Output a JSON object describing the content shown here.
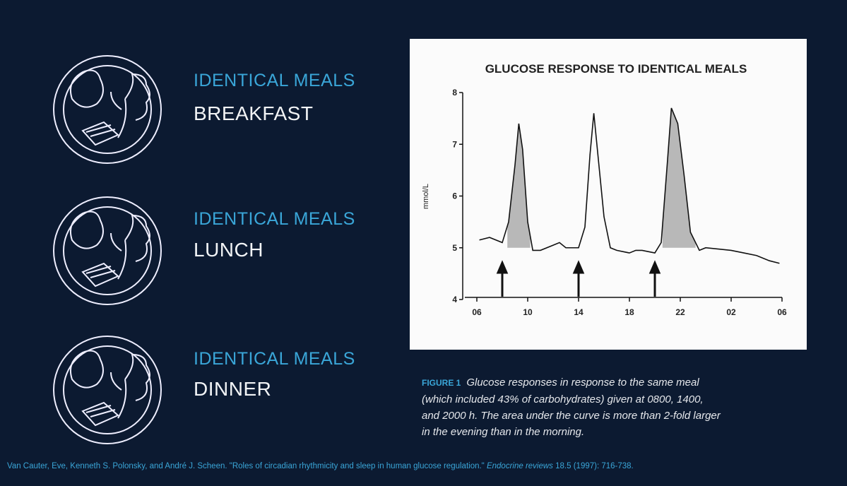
{
  "meals": [
    {
      "label": "IDENTICAL MEALS",
      "name": "BREAKFAST"
    },
    {
      "label": "IDENTICAL MEALS",
      "name": "LUNCH"
    },
    {
      "label": "IDENTICAL MEALS",
      "name": "DINNER"
    }
  ],
  "caption": {
    "figure": "FIGURE 1",
    "lines": [
      "Glucose responses in response to the same meal",
      "(which included 43% of carbohydrates) given at 0800, 1400,",
      "and 2000 h. The area under the curve is more than 2-fold larger",
      "in the evening than in the morning."
    ]
  },
  "citation": {
    "before": "Van Cauter, Eve, Kenneth S. Polonsky, and André J. Scheen. \"Roles of circadian rhythmicity and sleep in human glucose regulation.\"",
    "journal": "Endocrine reviews",
    "after": "18.5 (1997): 716-738."
  },
  "chart_data": {
    "type": "line",
    "title": "GLUCOSE RESPONSE TO IDENTICAL MEALS",
    "y_label": "mmol/L",
    "color": "#111111",
    "x": [
      6.2,
      7,
      8,
      8.5,
      9.0,
      9.3,
      9.6,
      10.0,
      10.4,
      11,
      12,
      12.5,
      13,
      14,
      14.5,
      14.9,
      15.2,
      15.6,
      16.0,
      16.5,
      17,
      18,
      18.5,
      19,
      20,
      20.5,
      21,
      21.3,
      21.8,
      22.3,
      22.8,
      23.5,
      24,
      26,
      27,
      28,
      29,
      29.8
    ],
    "values": [
      5.15,
      5.2,
      5.1,
      5.5,
      6.6,
      7.4,
      6.9,
      5.5,
      4.95,
      4.95,
      5.05,
      5.1,
      5.0,
      5.0,
      5.4,
      6.8,
      7.6,
      6.6,
      5.6,
      5.0,
      4.95,
      4.9,
      4.95,
      4.95,
      4.9,
      5.1,
      6.7,
      7.7,
      7.4,
      6.4,
      5.3,
      4.95,
      5.0,
      4.95,
      4.9,
      4.85,
      4.75,
      4.7
    ],
    "shaded": [
      [
        8.4,
        10.2
      ],
      [
        20.6,
        23.2
      ]
    ],
    "meal_times": [
      8,
      14,
      20
    ],
    "xlim": [
      6,
      30
    ],
    "xticks": [
      {
        "value": 6,
        "label": "06"
      },
      10,
      14,
      18,
      22,
      {
        "value": 26,
        "label": "02"
      },
      {
        "value": 30,
        "label": "06"
      }
    ],
    "ylim": [
      4,
      8
    ],
    "yticks": [
      4,
      5,
      6,
      7,
      8
    ]
  }
}
